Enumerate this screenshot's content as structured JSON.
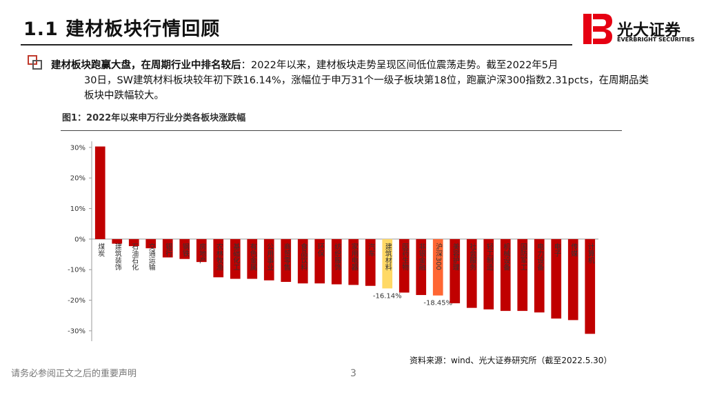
{
  "header": {
    "title": "1.1  建材板块行情回顾",
    "logo": "光大证券",
    "logo_en": "EVERBRIGHT SECURITIES"
  },
  "bullet": {
    "bold": "建材板块跑赢大盘，在周期行业中排名较后",
    "text1": "：2022年以来，建材板块走势呈现区间低位震荡走势。截至2022年5月",
    "text2": "30日，SW建筑材料板块较年初下跌16.14%，涨幅位于申万31个一级子板块第18位，跑赢沪深300指数2.31pcts，在周期品类板块中跌幅较大。"
  },
  "figure_caption": "图1：2022年以来申万行业分类各板块涨跌幅",
  "source": "资料来源：wind、光大证券研究所（截至2022.5.30）",
  "footer": "请务必参阅正文之后的重要声明",
  "page_number": "3",
  "chart_data": {
    "type": "bar",
    "categories": [
      "煤炭",
      "建筑装饰",
      "石油石化",
      "交通运输",
      "银行",
      "钢铁",
      "房地产",
      "农林牧渔",
      "基础化工",
      "有色金属",
      "公用事业",
      "商贸零售",
      "食品饮料",
      "环保",
      "纺织服饰",
      "家用电器",
      "汽车",
      "建筑材料",
      "医药生物",
      "非银金融",
      "沪深300",
      "美容护理",
      "社会服务",
      "轻工制造",
      "机械设备",
      "国防军工",
      "电力设备",
      "电子",
      "传媒",
      "计算机"
    ],
    "values": [
      30.3,
      -1.5,
      -2.3,
      -3,
      -6,
      -6.5,
      -7.5,
      -12.5,
      -13,
      -13,
      -13.5,
      -14,
      -14.5,
      -14.5,
      -14.8,
      -15,
      -15.3,
      -16.14,
      -17.5,
      -18.3,
      -18.45,
      -21,
      -22.5,
      -23,
      -23.5,
      -23.5,
      -24,
      -26,
      -26.5,
      -31
    ],
    "value_labels": [
      null,
      null,
      null,
      null,
      null,
      null,
      null,
      null,
      null,
      null,
      null,
      null,
      null,
      null,
      null,
      null,
      null,
      "-16.14%",
      null,
      null,
      "-18.45%",
      null,
      null,
      null,
      null,
      null,
      null,
      null,
      null,
      null
    ],
    "colors": [
      "#c00000",
      "#c00000",
      "#c00000",
      "#c00000",
      "#c00000",
      "#c00000",
      "#c00000",
      "#c00000",
      "#c00000",
      "#c00000",
      "#c00000",
      "#c00000",
      "#c00000",
      "#c00000",
      "#c00000",
      "#c00000",
      "#c00000",
      "#ffd966",
      "#c00000",
      "#c00000",
      "#ff6633",
      "#c00000",
      "#c00000",
      "#c00000",
      "#c00000",
      "#c00000",
      "#c00000",
      "#c00000",
      "#c00000",
      "#c00000"
    ],
    "ylim": [
      -33.4,
      32
    ],
    "yticks": [
      {
        "value": 30,
        "label": "30%"
      },
      {
        "value": 20,
        "label": "20%"
      },
      {
        "value": 10,
        "label": "10%"
      },
      {
        "value": 0,
        "label": "0%"
      },
      {
        "value": -10,
        "label": "-10%"
      },
      {
        "value": -20,
        "label": "-20%"
      },
      {
        "value": -30,
        "label": "-30%"
      }
    ],
    "grid": false
  }
}
